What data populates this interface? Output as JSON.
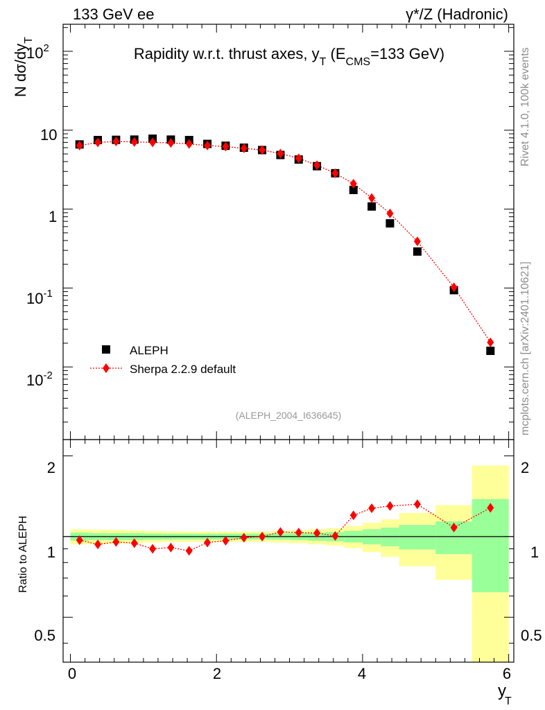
{
  "header": {
    "left": "133 GeV ee",
    "right": "γ*/Z (Hadronic)"
  },
  "side_text": {
    "rivet": "Rivet 4.1.0,  100k events",
    "mcplots": "mcplots.cern.ch [arXiv:2401.10621]"
  },
  "colors": {
    "data_marker": "#000000",
    "mc_line": "#ff0000",
    "band_inner": "#99ff99",
    "band_outer": "#ffff99"
  },
  "chart_data": [
    {
      "type": "scatter",
      "panel": "main",
      "title": "Rapidity w.r.t. thrust axes, y",
      "title_sub": "T",
      "title_suffix": " (E",
      "title_sub2": "CMS",
      "title_end": "=133 GeV)",
      "ylabel_main": "N  dσ/dy",
      "ylabel_sub": "T",
      "yscale": "log",
      "ylim": [
        0.0012,
        220
      ],
      "xlim": [
        -0.1,
        6.07
      ],
      "ytick_labels": [
        "10",
        "2",
        "10",
        "1",
        "10",
        "-1",
        "10",
        "-2"
      ],
      "ytick_values": [
        100,
        10,
        1,
        0.1,
        0.01
      ],
      "watermark": "(ALEPH_2004_I636645)",
      "legend": {
        "position": "bottom-left",
        "entries": [
          "ALEPH",
          "Sherpa 2.2.9 default"
        ]
      },
      "series": [
        {
          "name": "ALEPH",
          "style": "square",
          "x": [
            0.125,
            0.375,
            0.625,
            0.875,
            1.125,
            1.375,
            1.625,
            1.875,
            2.125,
            2.375,
            2.625,
            2.875,
            3.125,
            3.375,
            3.625,
            3.875,
            4.125,
            4.375,
            4.75,
            5.25,
            5.75
          ],
          "y": [
            6.6,
            7.5,
            7.55,
            7.6,
            7.8,
            7.6,
            7.5,
            6.7,
            6.35,
            6.0,
            5.6,
            4.85,
            4.25,
            3.5,
            2.85,
            1.75,
            1.08,
            0.66,
            0.29,
            0.094,
            0.016
          ]
        },
        {
          "name": "Sherpa 2.2.9 default",
          "style": "diamond-dotted-line",
          "x": [
            0.125,
            0.375,
            0.625,
            0.875,
            1.125,
            1.375,
            1.625,
            1.875,
            2.125,
            2.375,
            2.625,
            2.875,
            3.125,
            3.375,
            3.625,
            3.875,
            4.125,
            4.375,
            4.75,
            5.25,
            5.75
          ],
          "y": [
            6.4,
            7.0,
            7.2,
            7.1,
            7.0,
            6.9,
            6.7,
            6.4,
            6.2,
            5.9,
            5.6,
            5.05,
            4.4,
            3.6,
            2.85,
            2.1,
            1.38,
            0.88,
            0.39,
            0.102,
            0.0205
          ]
        }
      ]
    },
    {
      "type": "scatter",
      "panel": "ratio",
      "ylabel": "Ratio to ALEPH",
      "xlabel": "y",
      "xlabel_sub": "T",
      "ylim": [
        0.34,
        2.3
      ],
      "xlim": [
        -0.1,
        6.07
      ],
      "xticks": [
        0,
        2,
        4,
        6
      ],
      "xtick_labels": [
        "0",
        "2",
        "4",
        "6"
      ],
      "ytick_values": [
        0.5,
        1,
        2
      ],
      "ytick_labels": [
        "0.5",
        "1",
        "2"
      ],
      "reference_line": 1,
      "bands": {
        "x_edges": [
          0,
          0.25,
          0.5,
          0.75,
          1.0,
          1.25,
          1.5,
          1.75,
          2.0,
          2.25,
          2.5,
          2.75,
          3.0,
          3.25,
          3.5,
          3.75,
          4.0,
          4.25,
          4.5,
          5.0,
          5.5,
          6.0
        ],
        "inner_lo": [
          0.965,
          0.97,
          0.97,
          0.97,
          0.973,
          0.975,
          0.975,
          0.975,
          0.975,
          0.975,
          0.975,
          0.973,
          0.97,
          0.965,
          0.96,
          0.95,
          0.935,
          0.92,
          0.895,
          0.86,
          0.62
        ],
        "inner_hi": [
          1.035,
          1.03,
          1.03,
          1.03,
          1.027,
          1.025,
          1.025,
          1.025,
          1.025,
          1.025,
          1.025,
          1.027,
          1.03,
          1.035,
          1.04,
          1.05,
          1.065,
          1.08,
          1.105,
          1.14,
          1.38
        ],
        "outer_lo": [
          0.935,
          0.94,
          0.94,
          0.945,
          0.95,
          0.955,
          0.955,
          0.955,
          0.955,
          0.955,
          0.955,
          0.95,
          0.945,
          0.935,
          0.925,
          0.905,
          0.875,
          0.84,
          0.775,
          0.69,
          0.34
        ],
        "outer_hi": [
          1.065,
          1.06,
          1.06,
          1.055,
          1.05,
          1.045,
          1.045,
          1.045,
          1.045,
          1.045,
          1.045,
          1.05,
          1.055,
          1.065,
          1.075,
          1.095,
          1.125,
          1.16,
          1.225,
          1.31,
          1.84
        ]
      },
      "series": [
        {
          "name": "Sherpa 2.2.9 default / ALEPH",
          "x": [
            0.125,
            0.375,
            0.625,
            0.875,
            1.125,
            1.375,
            1.625,
            1.875,
            2.125,
            2.375,
            2.625,
            2.875,
            3.125,
            3.375,
            3.625,
            3.875,
            4.125,
            4.375,
            4.75,
            5.25,
            5.75
          ],
          "y": [
            0.97,
            0.935,
            0.955,
            0.945,
            0.9,
            0.91,
            0.885,
            0.95,
            0.965,
            0.99,
            1.0,
            1.04,
            1.035,
            1.03,
            1.005,
            1.2,
            1.275,
            1.3,
            1.32,
            1.08,
            1.28
          ]
        }
      ]
    }
  ]
}
